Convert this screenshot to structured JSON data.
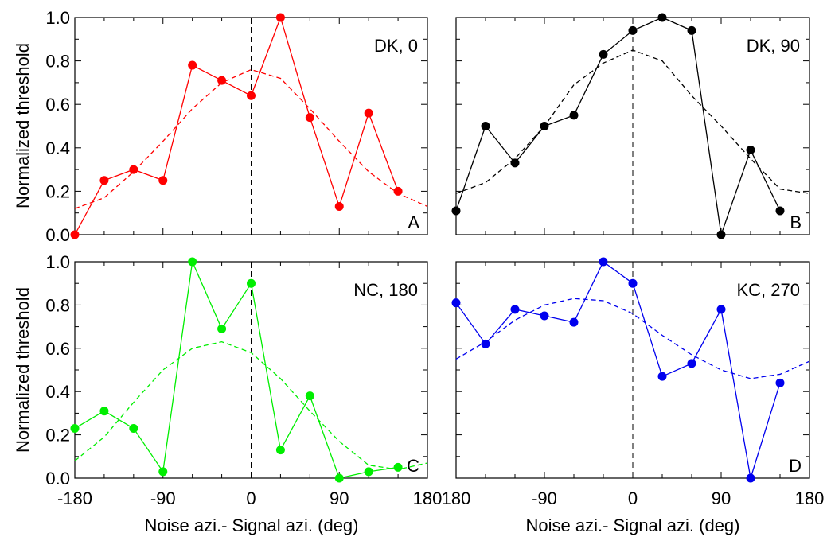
{
  "figure": {
    "ylabel": "Normalized threshold",
    "xlabel": "Noise azi.- Signal azi. (deg)"
  },
  "chart_data": [
    {
      "type": "line",
      "title": "DK, 0",
      "panel_letter": "A",
      "color": "#ff0000",
      "x": [
        -180,
        -150,
        -120,
        -90,
        -60,
        -30,
        0,
        30,
        60,
        90,
        120,
        150
      ],
      "series": [
        {
          "values": [
            0.0,
            0.25,
            0.3,
            0.25,
            0.78,
            0.71,
            0.64,
            1.0,
            0.54,
            0.13,
            0.56,
            0.2
          ],
          "style": "solid",
          "markers": true
        },
        {
          "x": [
            -180,
            -150,
            -120,
            -90,
            -60,
            -30,
            0,
            30,
            60,
            90,
            120,
            150,
            180
          ],
          "values": [
            0.12,
            0.17,
            0.29,
            0.43,
            0.58,
            0.7,
            0.76,
            0.72,
            0.58,
            0.43,
            0.29,
            0.19,
            0.13
          ],
          "style": "dashed",
          "markers": false
        }
      ],
      "xlim": [
        -180,
        180
      ],
      "ylim": [
        0,
        1
      ],
      "xticks": [
        -180,
        -90,
        0,
        90,
        180
      ],
      "yticks": [
        0.0,
        0.2,
        0.4,
        0.6,
        0.8,
        1.0
      ],
      "show_ylabels": true,
      "show_xlabels": false,
      "vline_x": 0
    },
    {
      "type": "line",
      "title": "DK, 90",
      "panel_letter": "B",
      "color": "#000000",
      "x": [
        -180,
        -150,
        -120,
        -90,
        -60,
        -30,
        0,
        30,
        60,
        90,
        120,
        150
      ],
      "series": [
        {
          "values": [
            0.11,
            0.5,
            0.33,
            0.5,
            0.55,
            0.83,
            0.94,
            1.0,
            0.94,
            0.0,
            0.39,
            0.11
          ],
          "style": "solid",
          "markers": true
        },
        {
          "x": [
            -180,
            -150,
            -120,
            -90,
            -60,
            -30,
            0,
            30,
            60,
            90,
            120,
            150,
            180
          ],
          "values": [
            0.19,
            0.24,
            0.35,
            0.5,
            0.69,
            0.79,
            0.85,
            0.8,
            0.64,
            0.5,
            0.35,
            0.21,
            0.19
          ],
          "style": "dashed",
          "markers": false
        }
      ],
      "xlim": [
        -180,
        180
      ],
      "ylim": [
        0,
        1
      ],
      "xticks": [
        -180,
        -90,
        0,
        90,
        180
      ],
      "yticks": [
        0.0,
        0.2,
        0.4,
        0.6,
        0.8,
        1.0
      ],
      "show_ylabels": false,
      "show_xlabels": false,
      "vline_x": 0
    },
    {
      "type": "line",
      "title": "NC, 180",
      "panel_letter": "C",
      "color": "#00ee00",
      "x": [
        -180,
        -150,
        -120,
        -90,
        -60,
        -30,
        0,
        30,
        60,
        90,
        120,
        150
      ],
      "series": [
        {
          "values": [
            0.23,
            0.31,
            0.23,
            0.03,
            1.0,
            0.69,
            0.9,
            0.13,
            0.38,
            0.0,
            0.03,
            0.05
          ],
          "style": "solid",
          "markers": true
        },
        {
          "x": [
            -180,
            -150,
            -120,
            -90,
            -60,
            -30,
            0,
            30,
            60,
            90,
            120,
            150,
            180
          ],
          "values": [
            0.08,
            0.19,
            0.35,
            0.5,
            0.6,
            0.63,
            0.58,
            0.46,
            0.31,
            0.17,
            0.06,
            0.04,
            0.07
          ],
          "style": "dashed",
          "markers": false
        }
      ],
      "xlim": [
        -180,
        180
      ],
      "ylim": [
        0,
        1
      ],
      "xticks": [
        -180,
        -90,
        0,
        90,
        180
      ],
      "yticks": [
        0.0,
        0.2,
        0.4,
        0.6,
        0.8,
        1.0
      ],
      "show_ylabels": true,
      "show_xlabels": true,
      "xticklabels": [
        "-180",
        "-90",
        "0",
        "90",
        "180"
      ],
      "vline_x": 0
    },
    {
      "type": "line",
      "title": "KC, 270",
      "panel_letter": "D",
      "color": "#0000ee",
      "x": [
        -180,
        -150,
        -120,
        -90,
        -60,
        -30,
        0,
        30,
        60,
        90,
        120,
        150
      ],
      "series": [
        {
          "values": [
            0.81,
            0.62,
            0.78,
            0.75,
            0.72,
            1.0,
            0.9,
            0.47,
            0.53,
            0.78,
            0.0,
            0.44
          ],
          "style": "solid",
          "markers": true
        },
        {
          "x": [
            -180,
            -150,
            -120,
            -90,
            -60,
            -30,
            0,
            30,
            60,
            90,
            120,
            150,
            180
          ],
          "values": [
            0.55,
            0.63,
            0.73,
            0.8,
            0.83,
            0.82,
            0.76,
            0.66,
            0.57,
            0.5,
            0.46,
            0.48,
            0.54
          ],
          "style": "dashed",
          "markers": false
        }
      ],
      "xlim": [
        -180,
        180
      ],
      "ylim": [
        0,
        1
      ],
      "xticks": [
        -180,
        -90,
        0,
        90,
        180
      ],
      "yticks": [
        0.0,
        0.2,
        0.4,
        0.6,
        0.8,
        1.0
      ],
      "show_ylabels": false,
      "show_xlabels": true,
      "xticklabels": [
        "180",
        "-90",
        "0",
        "90",
        "180"
      ],
      "vline_x": 0
    }
  ]
}
